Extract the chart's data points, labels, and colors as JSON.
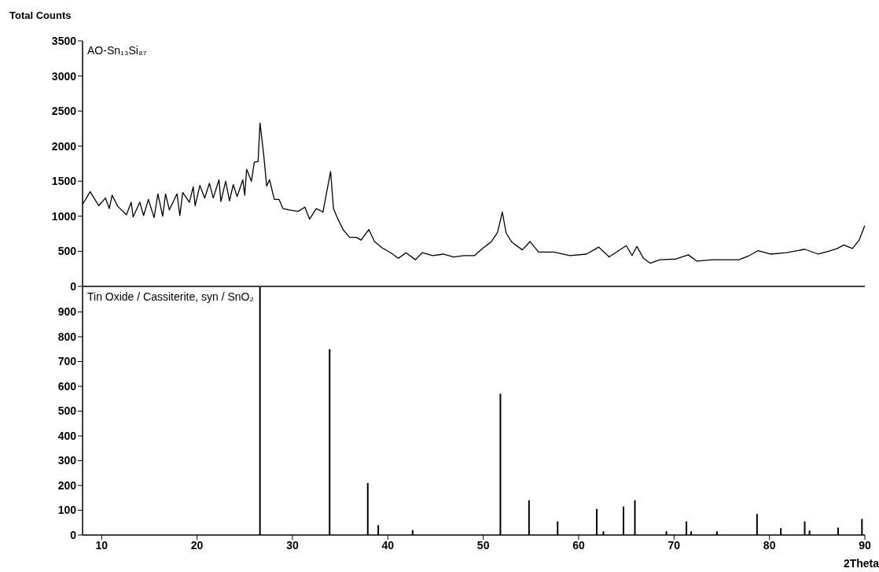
{
  "chart_data": [
    {
      "type": "line",
      "ylabel": "Total Counts",
      "xlim": [
        8,
        90
      ],
      "xticks": [
        10,
        20,
        30,
        40,
        50,
        60,
        70,
        80,
        90
      ],
      "ylim": [
        0,
        3500
      ],
      "yticks": [
        0,
        500,
        1000,
        1500,
        2000,
        2500,
        3000,
        3500
      ],
      "tick_labels": "y",
      "marker": "none",
      "line_style": "solid",
      "series": [
        {
          "name": "AO-Sn₁₃Si₈₇",
          "color": "#000000",
          "x": [
            8.0,
            8.8,
            9.7,
            10.4,
            10.8,
            11.1,
            11.7,
            12.6,
            13.1,
            13.3,
            14.0,
            14.4,
            14.9,
            15.5,
            15.9,
            16.4,
            16.7,
            17.1,
            17.9,
            18.2,
            18.5,
            19.2,
            19.6,
            19.8,
            20.3,
            20.8,
            21.3,
            21.7,
            22.3,
            22.5,
            23.0,
            23.4,
            23.8,
            24.2,
            24.8,
            25.0,
            25.2,
            25.7,
            26.0,
            26.4,
            26.6,
            27.0,
            27.3,
            27.6,
            28.1,
            28.6,
            29.0,
            29.7,
            30.6,
            31.3,
            31.8,
            32.5,
            33.2,
            33.6,
            34.0,
            34.3,
            34.7,
            35.3,
            36.0,
            36.7,
            37.2,
            38.0,
            38.6,
            39.4,
            40.3,
            41.1,
            41.9,
            42.9,
            43.6,
            44.7,
            45.8,
            46.9,
            48.0,
            49.1,
            50.0,
            50.6,
            50.8,
            51.5,
            52.0,
            52.4,
            53.0,
            54.1,
            54.9,
            55.8,
            57.4,
            59.1,
            60.8,
            62.1,
            63.2,
            64.2,
            65.0,
            65.6,
            66.1,
            66.8,
            67.5,
            68.5,
            70.2,
            71.5,
            72.4,
            74.0,
            75.7,
            76.8,
            77.9,
            78.8,
            80.1,
            81.8,
            83.7,
            85.1,
            86.2,
            87.1,
            87.8,
            88.7,
            89.4,
            90.0
          ],
          "values": [
            1170,
            1350,
            1150,
            1260,
            1110,
            1300,
            1140,
            1020,
            1200,
            990,
            1200,
            1010,
            1240,
            980,
            1320,
            1000,
            1320,
            1090,
            1320,
            1010,
            1340,
            1200,
            1420,
            1150,
            1440,
            1260,
            1470,
            1260,
            1520,
            1210,
            1500,
            1220,
            1450,
            1280,
            1520,
            1300,
            1670,
            1500,
            1770,
            1780,
            2330,
            1860,
            1430,
            1520,
            1240,
            1240,
            1110,
            1090,
            1070,
            1130,
            960,
            1110,
            1060,
            1350,
            1640,
            1110,
            980,
            810,
            700,
            700,
            660,
            810,
            640,
            550,
            480,
            400,
            480,
            380,
            480,
            440,
            460,
            420,
            440,
            440,
            550,
            610,
            630,
            770,
            1060,
            760,
            630,
            520,
            640,
            490,
            490,
            440,
            460,
            560,
            420,
            510,
            580,
            440,
            570,
            400,
            330,
            380,
            390,
            450,
            360,
            380,
            380,
            380,
            440,
            510,
            460,
            480,
            530,
            460,
            500,
            540,
            590,
            540,
            660,
            870
          ]
        }
      ]
    },
    {
      "type": "bar",
      "xlabel": "2Theta",
      "xlim": [
        8,
        90
      ],
      "xticks": [
        10,
        20,
        30,
        40,
        50,
        60,
        70,
        80,
        90
      ],
      "ylim": [
        0,
        1000
      ],
      "yticks": [
        0,
        100,
        200,
        300,
        400,
        500,
        600,
        700,
        800,
        900
      ],
      "series": [
        {
          "name": "Tin Oxide / Cassiterite, syn / SnO₂",
          "color": "#000000",
          "x": [
            26.6,
            33.9,
            37.9,
            39.0,
            42.6,
            51.8,
            54.8,
            57.8,
            61.9,
            62.6,
            64.7,
            65.9,
            69.2,
            71.3,
            71.8,
            74.5,
            78.7,
            81.2,
            83.7,
            84.2,
            87.2,
            89.7
          ],
          "values": [
            1000,
            750,
            210,
            40,
            20,
            570,
            140,
            55,
            105,
            15,
            115,
            140,
            15,
            55,
            15,
            15,
            85,
            28,
            55,
            18,
            30,
            65
          ]
        }
      ]
    }
  ]
}
